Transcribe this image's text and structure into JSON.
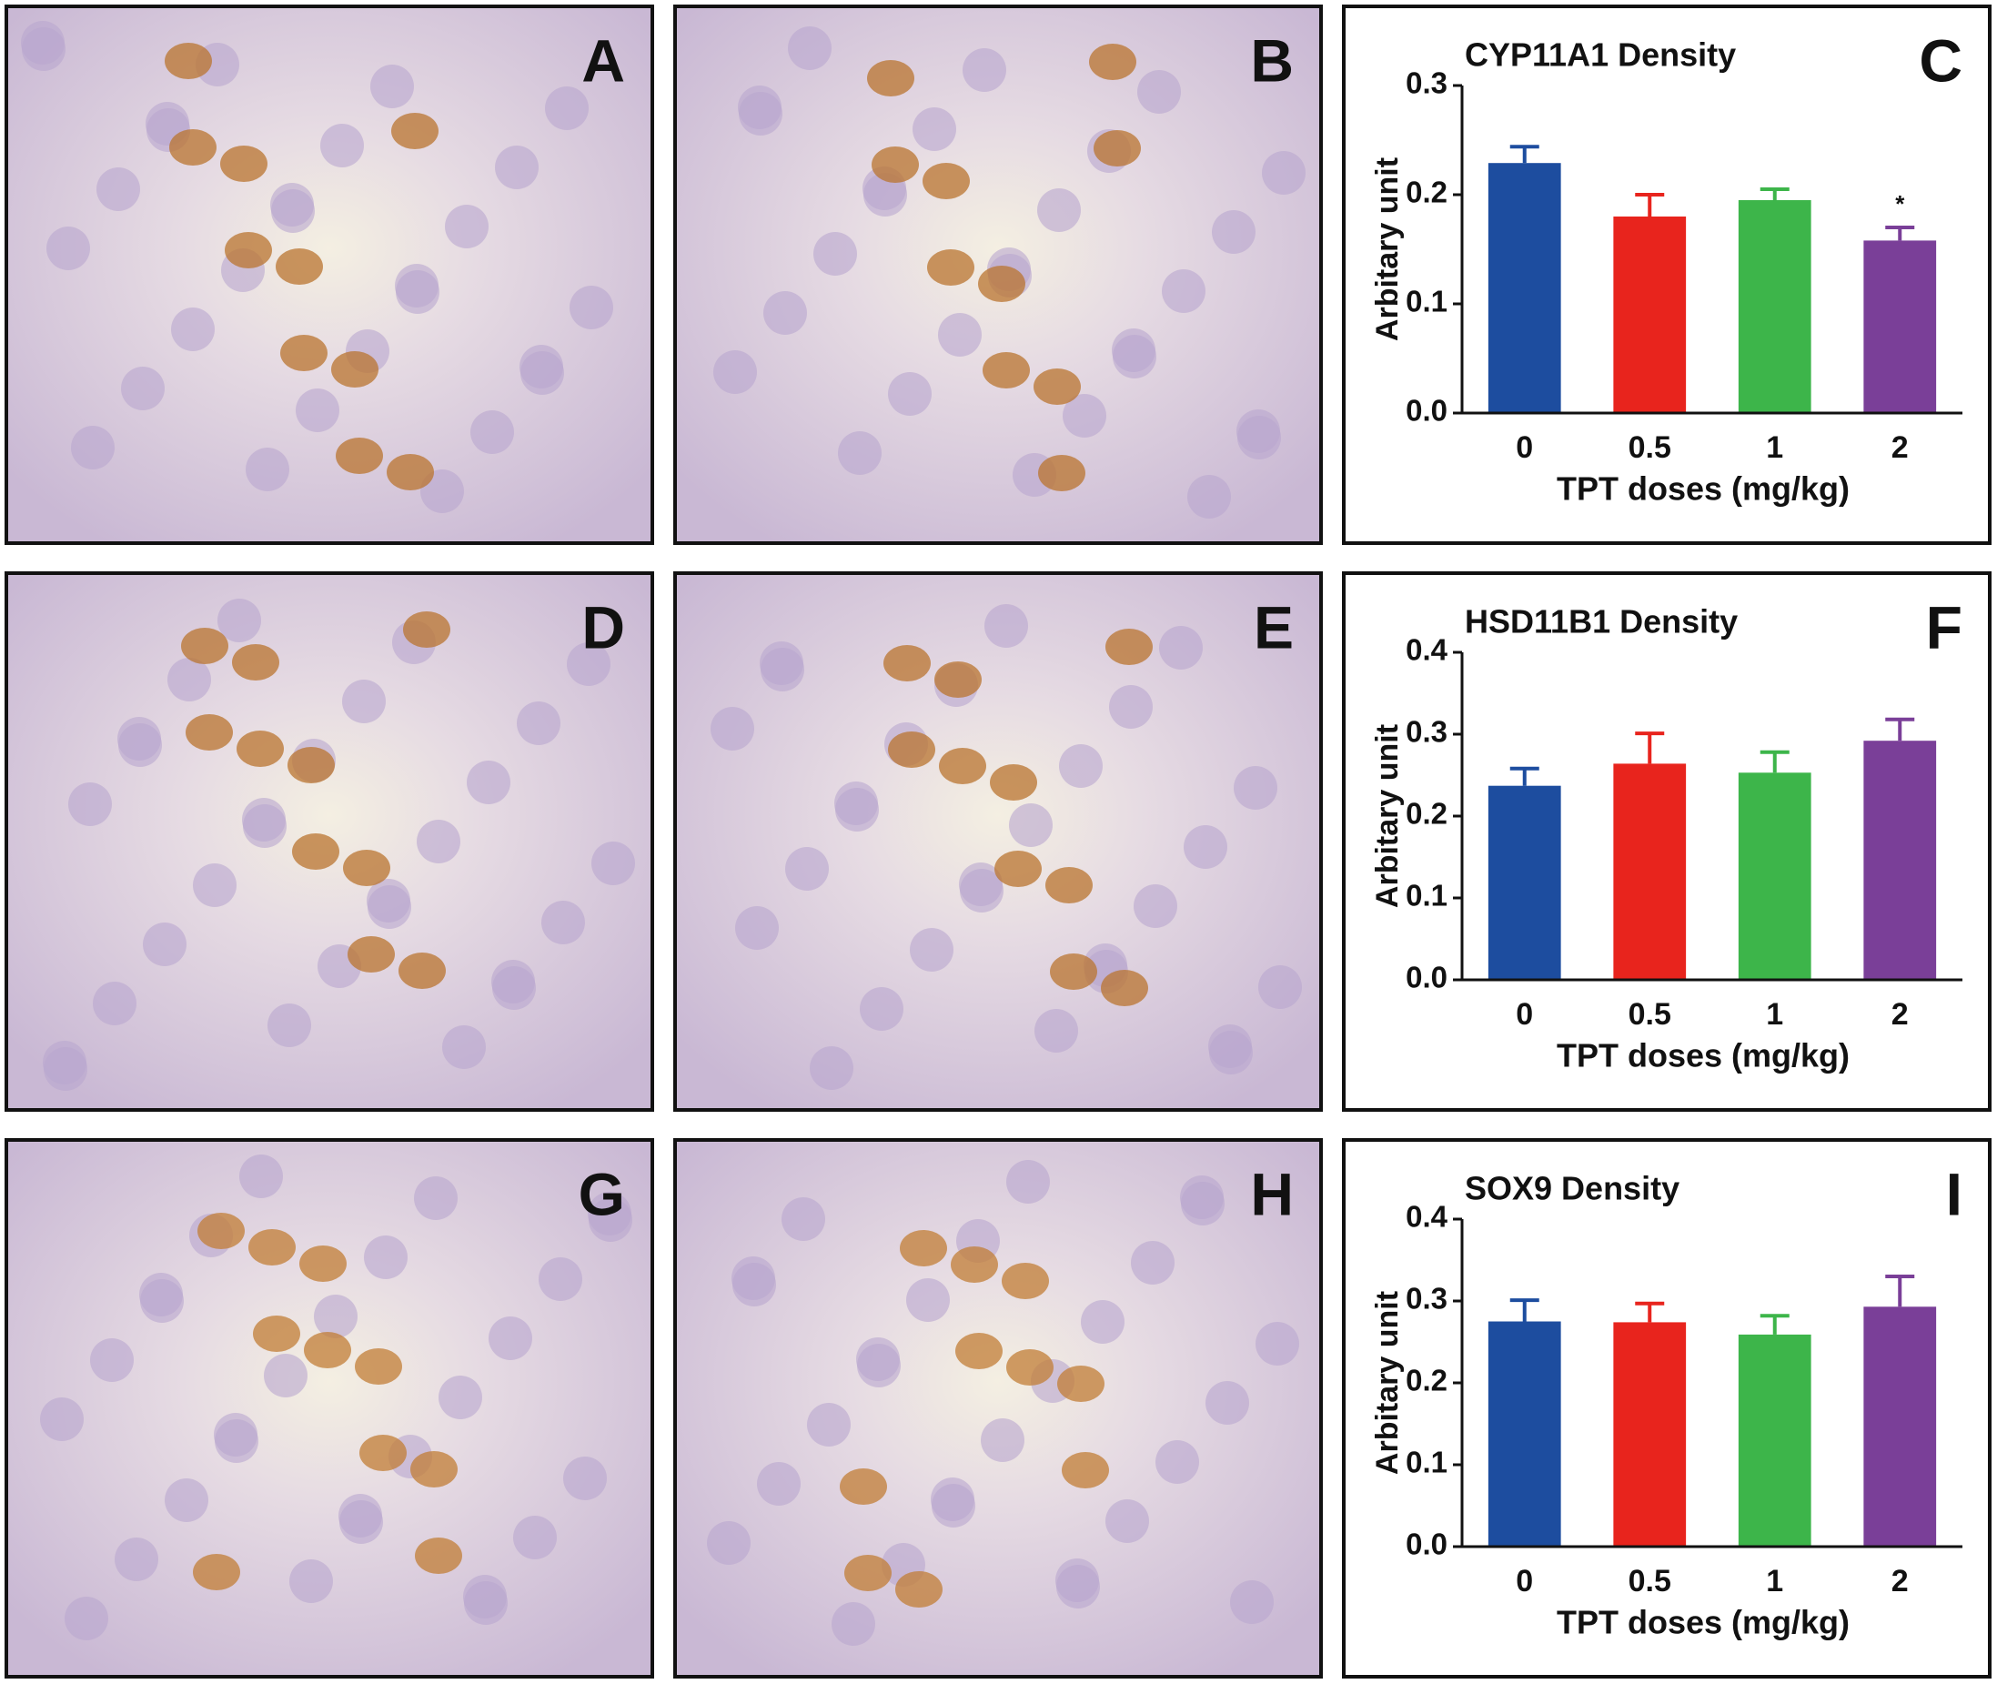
{
  "image_panels": [
    {
      "label": "A"
    },
    {
      "label": "B"
    },
    {
      "label": "D"
    },
    {
      "label": "E"
    },
    {
      "label": "G"
    },
    {
      "label": "H"
    }
  ],
  "chart_data": [
    {
      "type": "bar",
      "panel_label": "C",
      "title": "CYP11A1 Density",
      "x_label": "TPT doses (mg/kg)",
      "y_label": "Arbitary unit",
      "categories": [
        "0",
        "0.5",
        "1",
        "2"
      ],
      "values": [
        0.229,
        0.18,
        0.195,
        0.158
      ],
      "errors": [
        0.015,
        0.02,
        0.01,
        0.012
      ],
      "colors": [
        "#1d4d9f",
        "#e8241d",
        "#3db54a",
        "#7a3f98"
      ],
      "markers": [
        null,
        null,
        null,
        "*"
      ],
      "ylim": [
        0,
        0.3
      ],
      "yticks": [
        {
          "value": 0,
          "label": "0.0"
        },
        0.1,
        0.2,
        0.3
      ]
    },
    {
      "type": "bar",
      "panel_label": "F",
      "title": "HSD11B1 Density",
      "x_label": "TPT doses (mg/kg)",
      "y_label": "Arbitary unit",
      "categories": [
        "0",
        "0.5",
        "1",
        "2"
      ],
      "values": [
        0.237,
        0.264,
        0.253,
        0.292
      ],
      "errors": [
        0.021,
        0.037,
        0.025,
        0.026
      ],
      "colors": [
        "#1d4d9f",
        "#e8241d",
        "#3db54a",
        "#7a3f98"
      ],
      "markers": [
        null,
        null,
        null,
        null
      ],
      "ylim": [
        0,
        0.4
      ],
      "yticks": [
        {
          "value": 0,
          "label": "0.0"
        },
        0.1,
        0.2,
        0.3,
        0.4
      ]
    },
    {
      "type": "bar",
      "panel_label": "I",
      "title": "SOX9 Density",
      "x_label": "TPT doses (mg/kg)",
      "y_label": "Arbitary unit",
      "categories": [
        "0",
        "0.5",
        "1",
        "2"
      ],
      "values": [
        0.275,
        0.274,
        0.259,
        0.293
      ],
      "errors": [
        0.026,
        0.023,
        0.023,
        0.037
      ],
      "colors": [
        "#1d4d9f",
        "#e8241d",
        "#3db54a",
        "#7a3f98"
      ],
      "markers": [
        null,
        null,
        null,
        null
      ],
      "ylim": [
        0,
        0.4
      ],
      "yticks": [
        {
          "value": 0,
          "label": "0.0"
        },
        0.1,
        0.2,
        0.3,
        0.4
      ]
    }
  ]
}
